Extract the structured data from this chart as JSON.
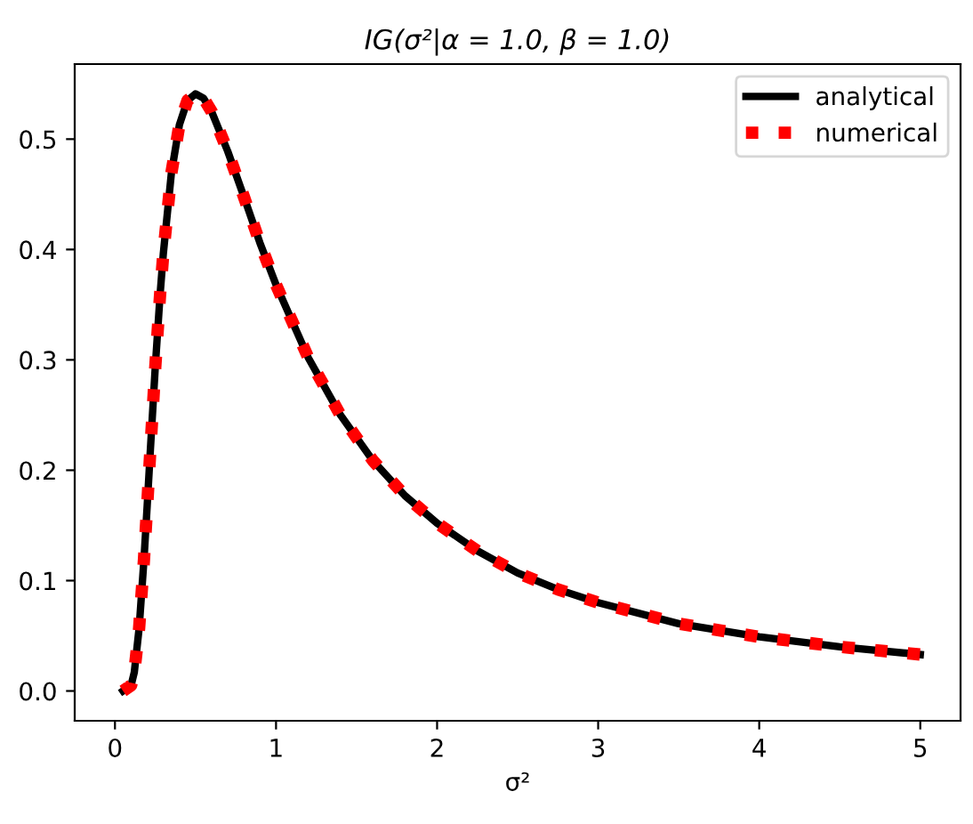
{
  "chart_data": {
    "type": "line",
    "title": "IG(σ²|α = 1.0, β = 1.0)",
    "xlabel": "σ²",
    "x": [
      0.05,
      0.1,
      0.12,
      0.15,
      0.18,
      0.2,
      0.22,
      0.25,
      0.28,
      0.3,
      0.35,
      0.4,
      0.45,
      0.5,
      0.55,
      0.6,
      0.7,
      0.8,
      0.9,
      1.0,
      1.2,
      1.4,
      1.6,
      1.8,
      2.0,
      2.25,
      2.5,
      2.75,
      3.0,
      3.5,
      4.0,
      4.5,
      5.0
    ],
    "series": [
      {
        "name": "analytical",
        "color": "#000000",
        "line_style": "solid",
        "values": [
          0.0,
          0.005,
          0.017,
          0.057,
          0.119,
          0.168,
          0.219,
          0.293,
          0.359,
          0.396,
          0.469,
          0.513,
          0.535,
          0.541,
          0.537,
          0.525,
          0.489,
          0.448,
          0.406,
          0.368,
          0.302,
          0.25,
          0.209,
          0.177,
          0.152,
          0.127,
          0.107,
          0.092,
          0.08,
          0.061,
          0.049,
          0.04,
          0.033
        ]
      },
      {
        "name": "numerical",
        "color": "#ff0000",
        "line_style": "dotted",
        "values": [
          0.0,
          0.005,
          0.017,
          0.057,
          0.119,
          0.168,
          0.219,
          0.293,
          0.359,
          0.396,
          0.469,
          0.513,
          0.535,
          0.541,
          0.537,
          0.525,
          0.489,
          0.448,
          0.406,
          0.368,
          0.302,
          0.25,
          0.209,
          0.177,
          0.152,
          0.127,
          0.107,
          0.092,
          0.08,
          0.061,
          0.049,
          0.04,
          0.033
        ]
      }
    ],
    "xlim": [
      -0.25,
      5.25
    ],
    "ylim": [
      -0.027,
      0.568
    ],
    "xticks": [
      0,
      1,
      2,
      3,
      4,
      5
    ],
    "yticks": [
      {
        "value": 0,
        "label": "0.0"
      },
      0.1,
      0.2,
      0.3,
      0.4,
      0.5
    ],
    "grid": false,
    "legend": "top right"
  }
}
